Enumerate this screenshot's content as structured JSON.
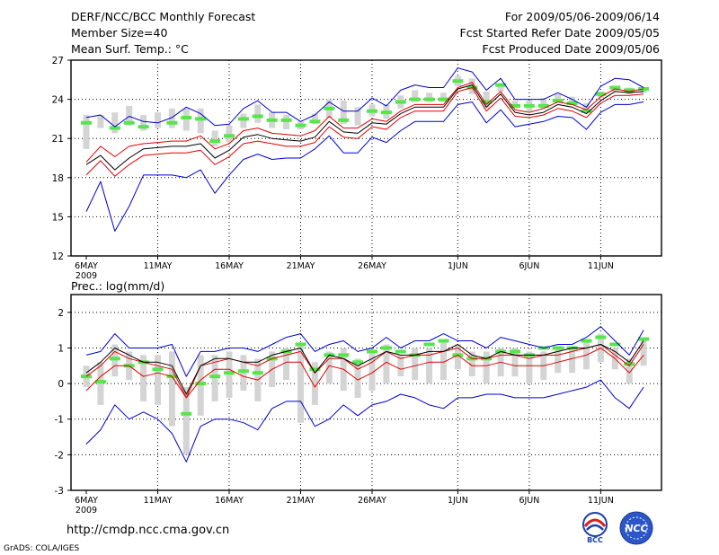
{
  "header": {
    "title": "DERF/NCC/BCC Monthly Forecast",
    "member_size": "Member Size=40",
    "variable": "Mean Surf. Temp.: °C",
    "period": "For 2009/05/06-2009/06/14",
    "fcst_started": "Fcst Started Refer Date 2009/05/05",
    "fcst_produced": "Fcst Produced Date 2009/05/06"
  },
  "footer": {
    "url": "http://cmdp.ncc.cma.gov.cn",
    "grads": "GrADS: COLA/IGES",
    "logo_bcc": "BCC",
    "logo_ncc": "NCC"
  },
  "colors": {
    "mean": "#000000",
    "median": "#e00000",
    "spread": "#0000d0",
    "box": "#d4d4d4",
    "obs": "#55e64a"
  },
  "chart_data": [
    {
      "type": "line",
      "title": "Mean Surf. Temp.: °C",
      "xlabel": "",
      "ylabel": "",
      "ylim": [
        12,
        27
      ],
      "yticks": [
        12,
        15,
        18,
        21,
        24,
        27
      ],
      "xticks": [
        {
          "day": 0,
          "label": "6MAY",
          "sub": "2009"
        },
        {
          "day": 5,
          "label": "11MAY"
        },
        {
          "day": 10,
          "label": "16MAY"
        },
        {
          "day": 15,
          "label": "21MAY"
        },
        {
          "day": 20,
          "label": "26MAY"
        },
        {
          "day": 26,
          "label": "1JUN"
        },
        {
          "day": 31,
          "label": "6JUN"
        },
        {
          "day": 36,
          "label": "11JUN"
        }
      ],
      "grid": true,
      "x": [
        0,
        1,
        2,
        3,
        4,
        5,
        6,
        7,
        8,
        9,
        10,
        11,
        12,
        13,
        14,
        15,
        16,
        17,
        18,
        19,
        20,
        21,
        22,
        23,
        24,
        25,
        26,
        27,
        28,
        29,
        30,
        31,
        32,
        33,
        34,
        35,
        36,
        37,
        38,
        39
      ],
      "series": [
        {
          "name": "upper",
          "values": [
            22.6,
            22.8,
            21.9,
            22.7,
            22.3,
            22.2,
            22.6,
            23.4,
            22.9,
            22.0,
            22.1,
            23.3,
            23.9,
            23.0,
            23.0,
            22.3,
            22.8,
            23.8,
            23.1,
            23.1,
            24.1,
            23.5,
            24.7,
            25.1,
            24.9,
            24.9,
            26.4,
            26.1,
            24.7,
            25.6,
            24.0,
            24.0,
            24.0,
            24.5,
            24.0,
            23.4,
            25.0,
            25.6,
            25.5,
            24.9
          ]
        },
        {
          "name": "median_red",
          "values": [
            19.2,
            20.4,
            19.6,
            20.4,
            20.6,
            20.7,
            20.8,
            20.8,
            21.2,
            20.2,
            20.6,
            21.6,
            21.8,
            21.4,
            21.3,
            21.2,
            21.6,
            22.7,
            21.8,
            21.8,
            22.5,
            22.3,
            23.1,
            23.6,
            23.6,
            23.6,
            24.9,
            25.3,
            23.6,
            24.6,
            23.2,
            23.0,
            23.3,
            23.8,
            23.6,
            23.2,
            24.2,
            24.8,
            24.6,
            24.8
          ]
        },
        {
          "name": "mean_black",
          "values": [
            19.0,
            19.7,
            18.6,
            19.5,
            20.2,
            20.3,
            20.4,
            20.4,
            20.6,
            19.5,
            20.1,
            21.1,
            21.3,
            21.0,
            20.9,
            20.8,
            21.1,
            22.3,
            21.5,
            21.4,
            22.2,
            22.1,
            22.9,
            23.4,
            23.4,
            23.4,
            24.8,
            25.1,
            23.4,
            24.4,
            23.0,
            22.8,
            23.0,
            23.6,
            23.4,
            22.9,
            23.9,
            24.6,
            24.5,
            24.6
          ]
        },
        {
          "name": "mean_red_low",
          "values": [
            18.2,
            19.3,
            18.1,
            19.0,
            19.7,
            19.8,
            19.9,
            19.9,
            20.1,
            19.0,
            19.6,
            20.6,
            20.8,
            20.6,
            20.4,
            20.4,
            20.7,
            21.9,
            21.1,
            21.0,
            21.9,
            21.7,
            22.6,
            23.1,
            23.1,
            23.1,
            24.6,
            24.9,
            23.1,
            24.1,
            22.7,
            22.6,
            22.8,
            23.3,
            23.1,
            22.6,
            23.7,
            24.3,
            24.3,
            24.4
          ]
        },
        {
          "name": "lower",
          "values": [
            15.4,
            17.7,
            13.9,
            15.8,
            18.2,
            18.2,
            18.2,
            18.0,
            18.6,
            16.8,
            18.2,
            19.4,
            19.8,
            19.4,
            19.5,
            19.5,
            20.2,
            21.2,
            19.9,
            19.9,
            21.1,
            20.7,
            21.6,
            22.3,
            22.3,
            22.3,
            23.6,
            23.8,
            22.2,
            23.2,
            21.9,
            22.1,
            22.3,
            22.7,
            22.6,
            21.7,
            23.0,
            23.6,
            23.6,
            23.8
          ]
        },
        {
          "name": "box_max",
          "values": [
            22.8,
            22.8,
            23.0,
            23.5,
            22.8,
            23.0,
            23.3,
            23.3,
            23.3,
            21.6,
            22.0,
            22.9,
            23.6,
            23.0,
            22.8,
            22.3,
            22.9,
            24.0,
            23.9,
            23.4,
            23.6,
            23.6,
            24.3,
            24.7,
            24.5,
            24.5,
            25.8,
            25.6,
            24.6,
            25.2,
            23.9,
            23.9,
            24.1,
            24.4,
            24.2,
            23.7,
            24.6,
            25.0,
            24.9,
            24.9
          ]
        },
        {
          "name": "box_min",
          "values": [
            20.2,
            21.8,
            21.4,
            22.0,
            21.6,
            21.8,
            21.8,
            21.6,
            21.4,
            20.4,
            20.7,
            21.8,
            22.2,
            21.8,
            21.7,
            21.7,
            22.1,
            22.6,
            22.1,
            22.0,
            22.7,
            22.5,
            23.3,
            23.8,
            23.8,
            23.8,
            25.0,
            24.4,
            23.3,
            24.6,
            23.3,
            23.1,
            23.3,
            23.8,
            23.6,
            23.2,
            24.1,
            24.6,
            24.4,
            24.5
          ]
        },
        {
          "name": "obs_green",
          "values": [
            22.2,
            null,
            21.8,
            22.2,
            21.9,
            null,
            22.2,
            22.6,
            22.5,
            20.8,
            21.2,
            22.5,
            22.7,
            22.4,
            22.4,
            22.0,
            22.3,
            23.3,
            22.4,
            null,
            23.1,
            23.0,
            23.8,
            24.0,
            24.0,
            24.0,
            25.4,
            24.9,
            23.8,
            25.1,
            23.5,
            23.5,
            23.5,
            23.9,
            23.7,
            23.1,
            24.4,
            24.9,
            24.7,
            24.8
          ]
        }
      ]
    },
    {
      "type": "line",
      "title": "Prec.: log(mm/d)",
      "xlabel": "",
      "ylabel": "",
      "ylim": [
        -3,
        2.5
      ],
      "yticks": [
        -3,
        -2,
        -1,
        0,
        1,
        2
      ],
      "xticks": [
        {
          "day": 0,
          "label": "6MAY",
          "sub": "2009"
        },
        {
          "day": 5,
          "label": "11MAY"
        },
        {
          "day": 10,
          "label": "16MAY"
        },
        {
          "day": 15,
          "label": "21MAY"
        },
        {
          "day": 20,
          "label": "26MAY"
        },
        {
          "day": 26,
          "label": "1JUN"
        },
        {
          "day": 31,
          "label": "6JUN"
        },
        {
          "day": 36,
          "label": "11JUN"
        }
      ],
      "grid": true,
      "x": [
        0,
        1,
        2,
        3,
        4,
        5,
        6,
        7,
        8,
        9,
        10,
        11,
        12,
        13,
        14,
        15,
        16,
        17,
        18,
        19,
        20,
        21,
        22,
        23,
        24,
        25,
        26,
        27,
        28,
        29,
        30,
        31,
        32,
        33,
        34,
        35,
        36,
        37,
        38,
        39
      ],
      "series": [
        {
          "name": "upper",
          "values": [
            0.8,
            0.9,
            1.4,
            1.0,
            1.0,
            1.0,
            1.1,
            0.2,
            0.9,
            0.9,
            1.0,
            1.0,
            0.9,
            1.1,
            1.3,
            1.4,
            0.9,
            1.1,
            1.2,
            0.9,
            1.0,
            1.3,
            1.0,
            1.2,
            1.2,
            1.4,
            1.2,
            1.2,
            1.0,
            1.3,
            1.2,
            1.1,
            1.0,
            1.1,
            1.1,
            1.3,
            1.6,
            1.2,
            0.8,
            1.5
          ]
        },
        {
          "name": "mean_black",
          "values": [
            0.3,
            0.6,
            1.0,
            0.8,
            0.6,
            0.6,
            0.5,
            -0.3,
            0.5,
            0.7,
            0.7,
            0.6,
            0.6,
            0.8,
            0.9,
            1.0,
            0.3,
            0.8,
            0.7,
            0.5,
            0.7,
            0.9,
            0.8,
            0.8,
            0.9,
            0.9,
            1.1,
            0.8,
            0.7,
            0.9,
            0.8,
            0.8,
            0.8,
            0.9,
            1.0,
            1.0,
            1.1,
            0.9,
            0.6,
            1.2
          ]
        },
        {
          "name": "median_red",
          "values": [
            0.2,
            0.5,
            0.9,
            0.7,
            0.6,
            0.5,
            0.4,
            -0.4,
            0.5,
            0.6,
            0.7,
            0.6,
            0.5,
            0.7,
            0.8,
            0.9,
            0.3,
            0.7,
            0.7,
            0.4,
            0.6,
            0.9,
            0.7,
            0.8,
            0.8,
            0.9,
            1.0,
            0.7,
            0.7,
            0.8,
            0.8,
            0.7,
            0.8,
            0.8,
            0.9,
            1.0,
            1.1,
            0.8,
            0.5,
            1.1
          ]
        },
        {
          "name": "mean_red_low",
          "values": [
            -0.2,
            0.2,
            0.5,
            0.5,
            0.2,
            0.3,
            0.2,
            -0.4,
            0.1,
            0.4,
            0.4,
            0.2,
            0.1,
            0.4,
            0.6,
            0.6,
            -0.1,
            0.5,
            0.4,
            0.1,
            0.3,
            0.6,
            0.4,
            0.5,
            0.6,
            0.6,
            0.8,
            0.5,
            0.5,
            0.6,
            0.5,
            0.5,
            0.5,
            0.6,
            0.7,
            0.8,
            1.0,
            0.7,
            0.3,
            0.8
          ]
        },
        {
          "name": "lower",
          "values": [
            -1.7,
            -1.3,
            -0.6,
            -1.0,
            -0.8,
            -1.0,
            -1.4,
            -2.2,
            -1.2,
            -1.0,
            -1.0,
            -1.1,
            -1.3,
            -0.7,
            -0.5,
            -0.5,
            -1.2,
            -1.0,
            -0.6,
            -0.9,
            -0.6,
            -0.5,
            -0.3,
            -0.4,
            -0.6,
            -0.7,
            -0.4,
            -0.4,
            -0.3,
            -0.3,
            -0.4,
            -0.4,
            -0.4,
            -0.3,
            -0.2,
            -0.1,
            0.1,
            -0.4,
            -0.7,
            -0.1
          ]
        },
        {
          "name": "box_max",
          "values": [
            0.5,
            0.6,
            1.1,
            0.9,
            0.8,
            0.8,
            0.9,
            -0.1,
            0.8,
            0.8,
            0.9,
            0.8,
            0.7,
            0.9,
            1.0,
            1.1,
            0.6,
            0.9,
            1.0,
            0.7,
            0.9,
            1.1,
            0.8,
            1.0,
            1.0,
            1.2,
            1.1,
            0.9,
            0.9,
            1.0,
            1.0,
            0.9,
            0.9,
            1.0,
            1.0,
            1.2,
            1.4,
            1.0,
            0.7,
            1.3
          ]
        },
        {
          "name": "box_min",
          "values": [
            -0.1,
            -0.6,
            0.2,
            0.1,
            -0.5,
            -0.6,
            -1.2,
            -2.0,
            -0.9,
            -0.5,
            -0.4,
            -0.2,
            -0.5,
            -0.1,
            0.1,
            -1.1,
            -0.6,
            0.0,
            -0.2,
            -0.4,
            -0.2,
            0.0,
            0.2,
            0.1,
            0.0,
            0.1,
            0.4,
            0.2,
            0.0,
            0.2,
            0.2,
            0.0,
            0.1,
            0.3,
            0.3,
            0.4,
            0.6,
            0.4,
            0.0,
            0.5
          ]
        },
        {
          "name": "obs_green",
          "values": [
            0.2,
            0.05,
            0.7,
            0.5,
            0.6,
            0.4,
            0.2,
            -0.85,
            0.0,
            0.2,
            0.3,
            0.35,
            0.3,
            0.7,
            0.9,
            1.1,
            0.4,
            0.8,
            0.8,
            0.6,
            0.9,
            1.0,
            0.9,
            0.8,
            1.1,
            1.2,
            0.8,
            0.7,
            0.7,
            0.9,
            0.9,
            0.8,
            1.0,
            1.0,
            1.0,
            1.2,
            1.3,
            1.1,
            0.55,
            1.25
          ]
        }
      ]
    }
  ]
}
